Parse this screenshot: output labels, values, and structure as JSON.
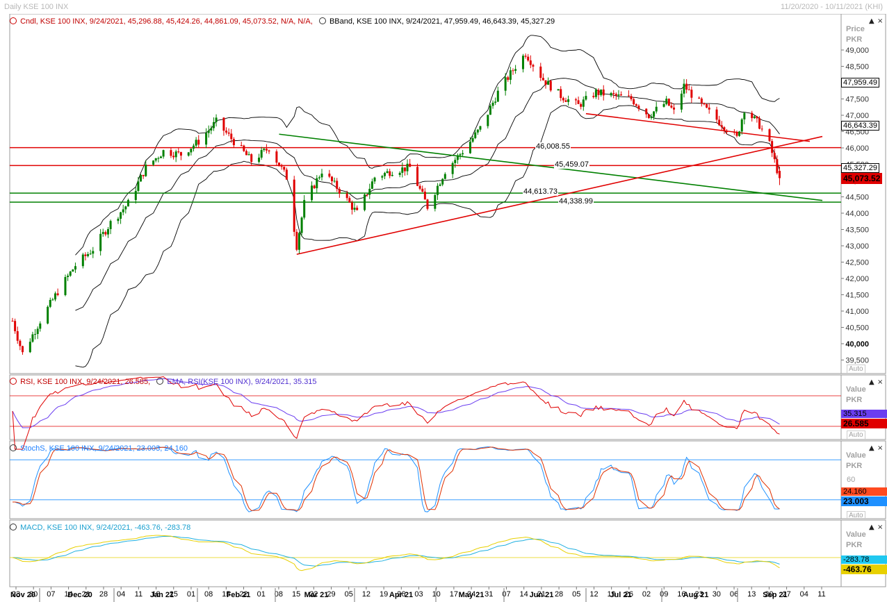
{
  "header": {
    "title": "Daily KSE 100 INX",
    "range": "11/20/2020 - 10/11/2021 (KHI)"
  },
  "colors": {
    "up": "#008000",
    "down": "#e00000",
    "bband": "#000000",
    "rsi": "#e00000",
    "rsi_ema": "#6a3df0",
    "stoch_k": "#1e90ff",
    "stoch_d": "#e03000",
    "macd": "#e8d000",
    "macd_signal": "#20b0e0",
    "support": "#008000",
    "resistance": "#e00000"
  },
  "main_panel": {
    "legend_candle": "Cndl, KSE 100 INX, 9/24/2021, 45,296.88, 45,424.26, 44,861.09, 45,073.52, N/A, N/A,",
    "legend_bband": "BBand, KSE 100 INX, 9/24/2021, 47,959.49, 46,643.39, 45,327.29",
    "axis_title_1": "Price",
    "axis_title_2": "PKR",
    "auto_label": "Auto"
  },
  "rsi_panel": {
    "legend_rsi": "RSI, KSE 100 INX, 9/24/2021, 26.585,",
    "legend_ema": "EMA, RSI(KSE 100 INX), 9/24/2021, 35.315",
    "axis_title_1": "Value",
    "axis_title_2": "PKR",
    "auto_label": "Auto",
    "tag_ema": "35.315",
    "tag_rsi": "26.585"
  },
  "stoch_panel": {
    "legend": "StochS, KSE 100 INX, 9/24/2021, 23.003, 24.160",
    "axis_title_1": "Value",
    "axis_title_2": "PKR",
    "tick_60": "60",
    "auto_label": "Auto",
    "tag_d": "24.160",
    "tag_k": "23.003"
  },
  "macd_panel": {
    "legend": "MACD, KSE 100 INX, 9/24/2021, -463.76, -283.78",
    "axis_title_1": "Value",
    "axis_title_2": "PKR",
    "tag_signal": "-283.78",
    "tag_macd": "-463.76"
  },
  "price_tags": {
    "upper_band": "47,959.49",
    "middle_band": "46,643.39",
    "lower_band": "45,327.29",
    "close": "45,073.52"
  },
  "level_labels": {
    "r1": "46,008.55",
    "r2": "45,459.07",
    "s1": "44,613.73",
    "s2": "44,338.99"
  },
  "chart_data": {
    "type": "candlestick",
    "y_ticks": [
      {
        "value": 39500,
        "label": "39,500"
      },
      {
        "value": 40000,
        "label": "40,000"
      },
      {
        "value": 40500,
        "label": "40,500"
      },
      {
        "value": 41000,
        "label": "41,000"
      },
      {
        "value": 41500,
        "label": "41,500"
      },
      {
        "value": 42000,
        "label": "42,000"
      },
      {
        "value": 42500,
        "label": "42,500"
      },
      {
        "value": 43000,
        "label": "43,000"
      },
      {
        "value": 43500,
        "label": "43,500"
      },
      {
        "value": 44000,
        "label": "44,000"
      },
      {
        "value": 44500,
        "label": "44,500"
      },
      {
        "value": 45000,
        "label": "45,000"
      },
      {
        "value": 45500,
        "label": "45,500"
      },
      {
        "value": 46000,
        "label": "46,000"
      },
      {
        "value": 46500,
        "label": "46,500"
      },
      {
        "value": 47000,
        "label": "47,000"
      },
      {
        "value": 47500,
        "label": "47,500"
      },
      {
        "value": 48000,
        "label": "48,000"
      },
      {
        "value": 48500,
        "label": "48,500"
      },
      {
        "value": 49000,
        "label": "49,000"
      }
    ],
    "x_day_ticks": [
      "23",
      "30",
      "07",
      "14",
      "21",
      "28",
      "04",
      "11",
      "18",
      "25",
      "01",
      "08",
      "15",
      "22",
      "01",
      "08",
      "15",
      "22",
      "29",
      "05",
      "12",
      "19",
      "26",
      "03",
      "10",
      "17",
      "24",
      "31",
      "07",
      "14",
      "21",
      "28",
      "05",
      "12",
      "19",
      "26",
      "02",
      "09",
      "16",
      "23",
      "30",
      "06",
      "13",
      "20",
      "27",
      "04",
      "11"
    ],
    "x_month_labels": [
      "Nov 20",
      "Dec 20",
      "Jan 21",
      "Feb 21",
      "Mar 21",
      "Apr 21",
      "May 21",
      "Jun 21",
      "Jul 21",
      "Aug 21",
      "Sep 21"
    ],
    "resistance_levels": [
      46008.55,
      45459.07
    ],
    "support_levels": [
      44613.73,
      44338.99
    ],
    "close_path": [
      {
        "date": "2020-11-23",
        "close": 40700
      },
      {
        "date": "2020-11-27",
        "close": 39700
      },
      {
        "date": "2020-12-04",
        "close": 40700
      },
      {
        "date": "2020-12-11",
        "close": 41600
      },
      {
        "date": "2020-12-18",
        "close": 42400
      },
      {
        "date": "2020-12-25",
        "close": 42900
      },
      {
        "date": "2021-01-01",
        "close": 43700
      },
      {
        "date": "2021-01-08",
        "close": 44300
      },
      {
        "date": "2021-01-15",
        "close": 45400
      },
      {
        "date": "2021-01-22",
        "close": 45900
      },
      {
        "date": "2021-01-29",
        "close": 45800
      },
      {
        "date": "2021-02-05",
        "close": 46200
      },
      {
        "date": "2021-02-12",
        "close": 46800
      },
      {
        "date": "2021-02-19",
        "close": 46200
      },
      {
        "date": "2021-02-26",
        "close": 45600
      },
      {
        "date": "2021-03-05",
        "close": 46000
      },
      {
        "date": "2021-03-12",
        "close": 45100
      },
      {
        "date": "2021-03-16",
        "close": 43000
      },
      {
        "date": "2021-03-19",
        "close": 44300
      },
      {
        "date": "2021-03-26",
        "close": 45300
      },
      {
        "date": "2021-04-02",
        "close": 44700
      },
      {
        "date": "2021-04-09",
        "close": 44000
      },
      {
        "date": "2021-04-16",
        "close": 45100
      },
      {
        "date": "2021-04-23",
        "close": 45300
      },
      {
        "date": "2021-04-30",
        "close": 45400
      },
      {
        "date": "2021-05-07",
        "close": 44200
      },
      {
        "date": "2021-05-14",
        "close": 45300
      },
      {
        "date": "2021-05-21",
        "close": 45900
      },
      {
        "date": "2021-05-28",
        "close": 46600
      },
      {
        "date": "2021-06-04",
        "close": 47700
      },
      {
        "date": "2021-06-11",
        "close": 48500
      },
      {
        "date": "2021-06-15",
        "close": 48900
      },
      {
        "date": "2021-06-22",
        "close": 48100
      },
      {
        "date": "2021-06-29",
        "close": 47600
      },
      {
        "date": "2021-07-06",
        "close": 47300
      },
      {
        "date": "2021-07-13",
        "close": 47700
      },
      {
        "date": "2021-07-20",
        "close": 47600
      },
      {
        "date": "2021-07-27",
        "close": 47500
      },
      {
        "date": "2021-08-03",
        "close": 47000
      },
      {
        "date": "2021-08-10",
        "close": 47400
      },
      {
        "date": "2021-08-13",
        "close": 47100
      },
      {
        "date": "2021-08-17",
        "close": 47900
      },
      {
        "date": "2021-08-24",
        "close": 47300
      },
      {
        "date": "2021-08-31",
        "close": 46800
      },
      {
        "date": "2021-09-07",
        "close": 46300
      },
      {
        "date": "2021-09-10",
        "close": 47200
      },
      {
        "date": "2021-09-16",
        "close": 46700
      },
      {
        "date": "2021-09-20",
        "close": 46100
      },
      {
        "date": "2021-09-24",
        "close": 45073.52
      }
    ]
  }
}
